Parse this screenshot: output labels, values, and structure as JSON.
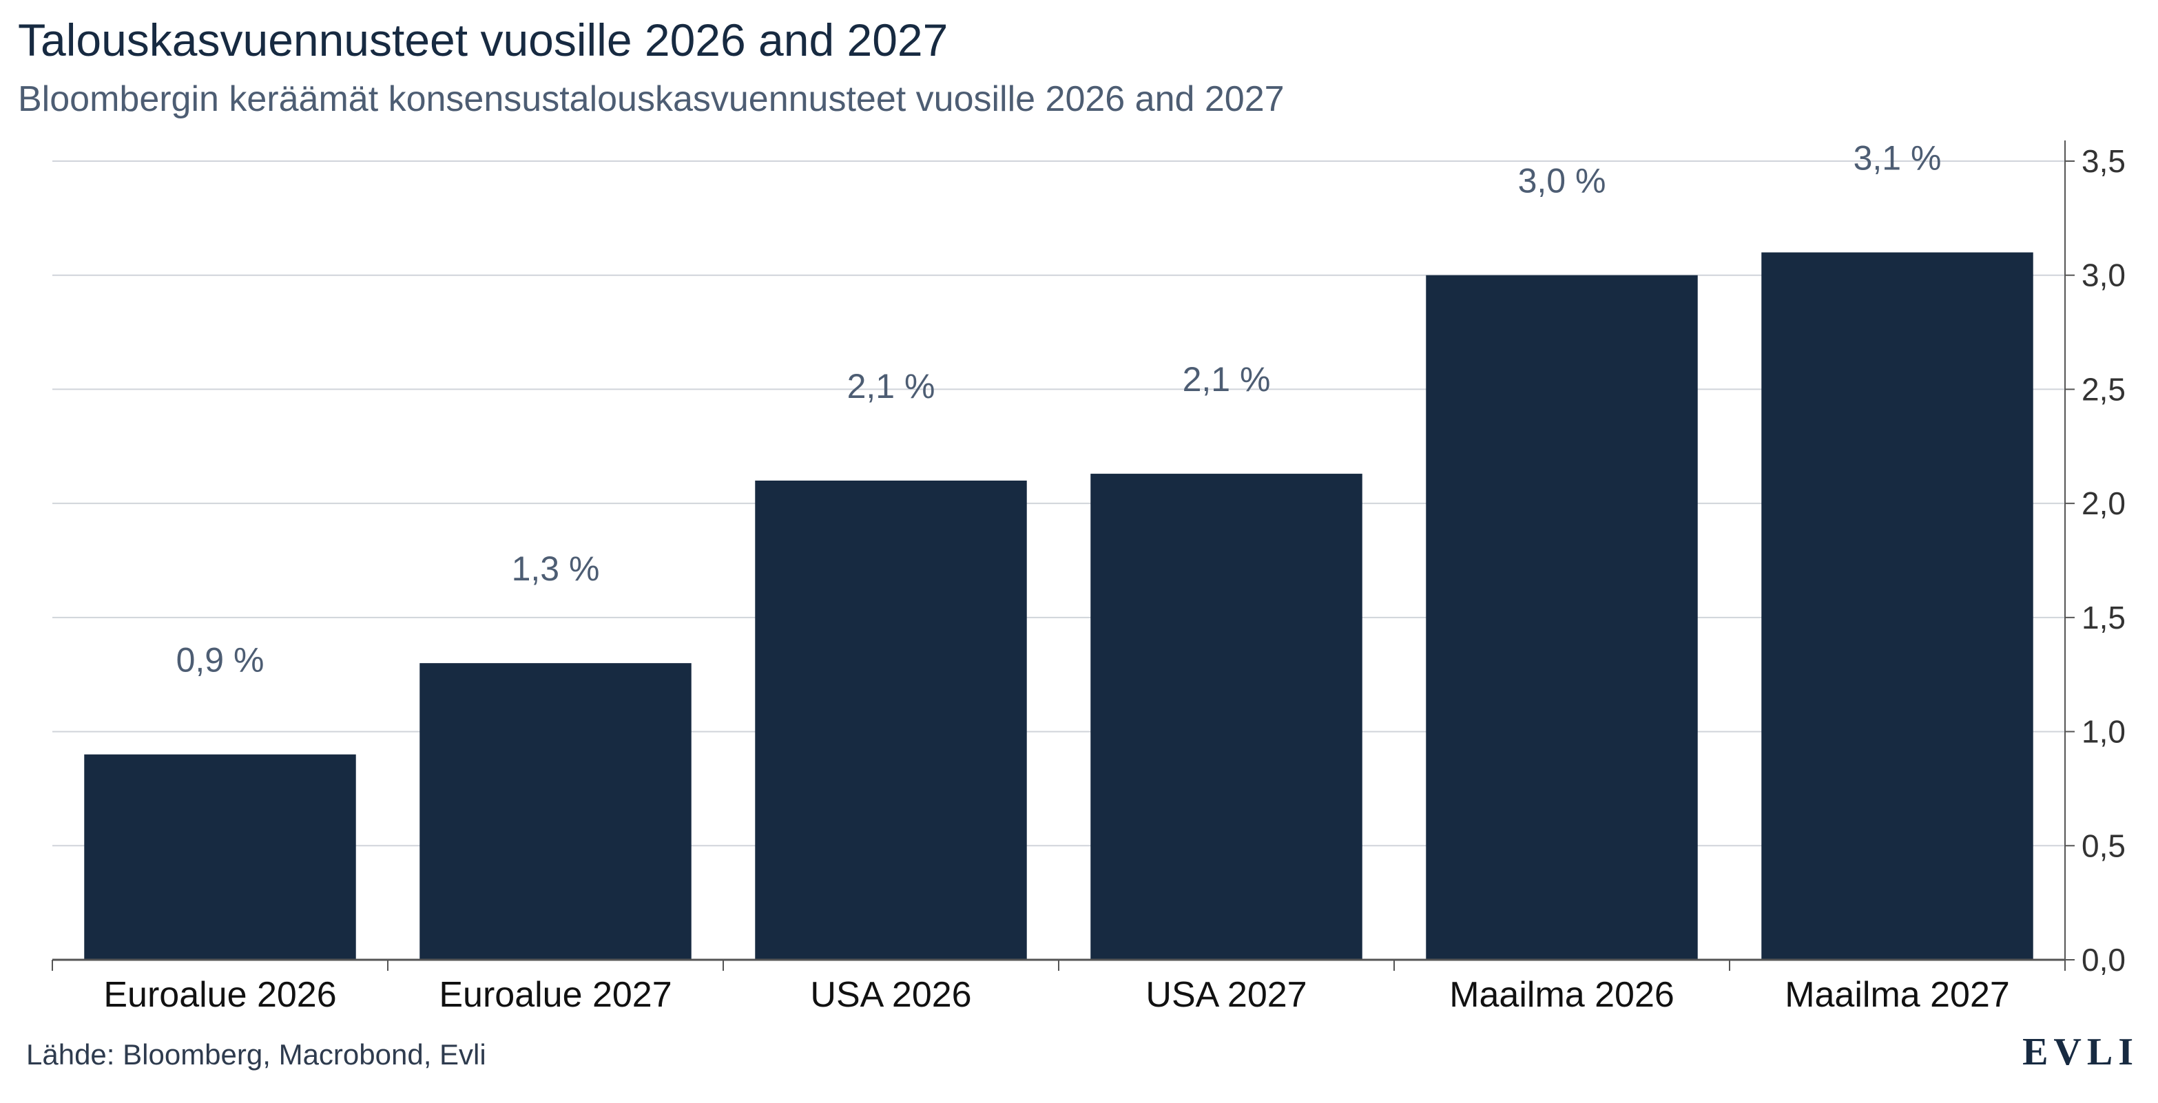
{
  "title": "Talouskasvuennusteet vuosille 2026 and 2027",
  "subtitle": "Bloombergin keräämät konsensustalouskasvuennusteet vuosille 2026 and 2027",
  "source": "Lähde: Bloomberg, Macrobond, Evli",
  "logo": "EVLI",
  "colors": {
    "bar": "#172a41",
    "grid": "#d0d4da",
    "axis": "#555555",
    "label": "#4d5d73"
  },
  "chart_data": {
    "type": "bar",
    "categories": [
      "Euroalue 2026",
      "Euroalue 2027",
      "USA 2026",
      "USA 2027",
      "Maailma 2026",
      "Maailma 2027"
    ],
    "values": [
      0.9,
      1.3,
      2.1,
      2.13,
      3.0,
      3.1
    ],
    "data_labels": [
      "0,9 %",
      "1,3 %",
      "2,1 %",
      "2,1 %",
      "3,0 %",
      "3,1 %"
    ],
    "ylim": [
      0,
      3.5
    ],
    "yticks": [
      0.0,
      0.5,
      1.0,
      1.5,
      2.0,
      2.5,
      3.0,
      3.5
    ],
    "ytick_labels": [
      "0,0",
      "0,5",
      "1,0",
      "1,5",
      "2,0",
      "2,5",
      "3,0",
      "3,5"
    ],
    "y_axis_side": "right",
    "grid": true,
    "xlabel": "",
    "ylabel": ""
  }
}
